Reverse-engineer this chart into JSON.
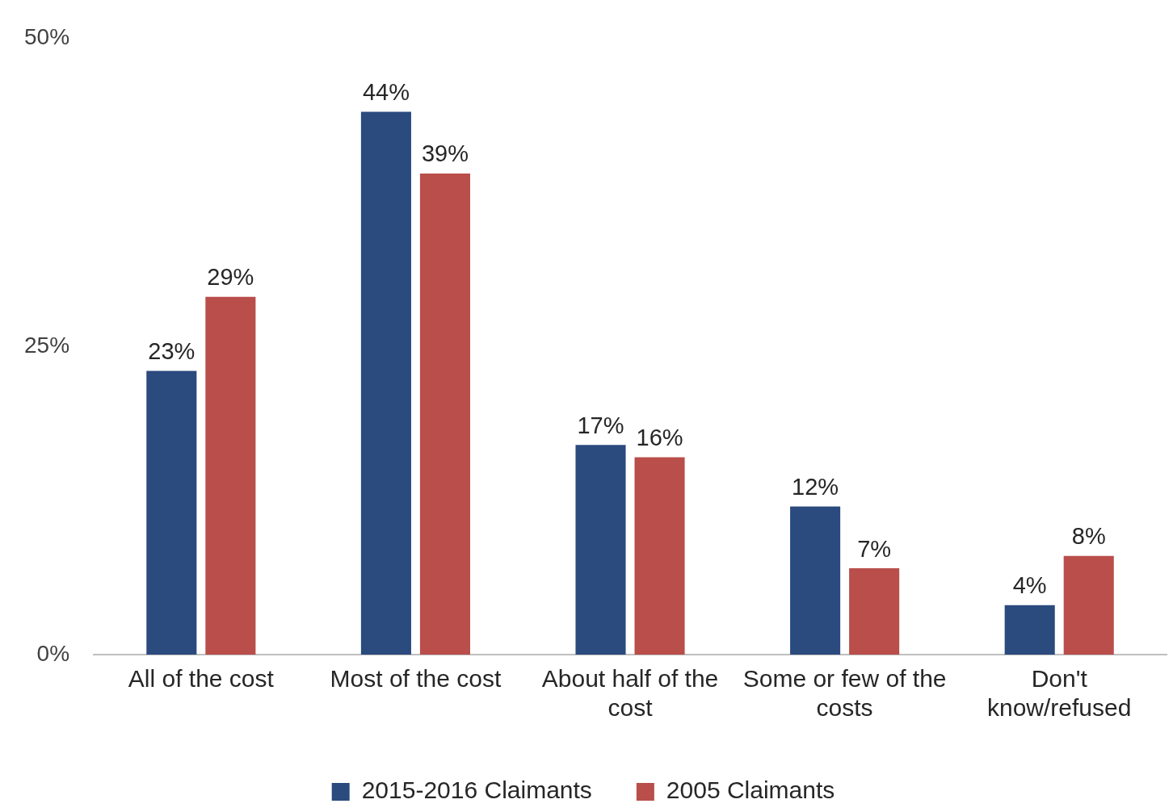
{
  "chart_data": {
    "type": "bar",
    "categories": [
      "All of the cost",
      "Most of the cost",
      "About half of the cost",
      "Some or few of the costs",
      "Don't know/refused"
    ],
    "series": [
      {
        "name": "2015-2016 Claimants",
        "color": "#2b4a7e",
        "values": [
          23,
          44,
          17,
          12,
          4
        ],
        "value_labels": [
          "23%",
          "44%",
          "17%",
          "12%",
          "4%"
        ]
      },
      {
        "name": "2005 Claimants",
        "color": "#b94e4a",
        "values": [
          29,
          39,
          16,
          7,
          8
        ],
        "value_labels": [
          "29%",
          "39%",
          "16%",
          "7%",
          "8%"
        ]
      }
    ],
    "ylim": [
      0,
      50
    ],
    "yticks": [
      {
        "value": 0,
        "label": "0%"
      },
      {
        "value": 25,
        "label": "25%"
      },
      {
        "value": 50,
        "label": "50%"
      }
    ],
    "grid": false,
    "legend": "bottom"
  }
}
